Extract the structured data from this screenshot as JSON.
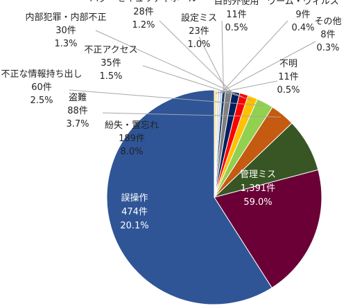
{
  "chart_data": {
    "type": "pie",
    "title": "",
    "slices": [
      {
        "name": "管理ミス",
        "count": "1,391件",
        "pct_label": "59.0%",
        "value": 1391,
        "color": "#2f5597",
        "text_color": "#ffffff"
      },
      {
        "name": "誤操作",
        "count": "474件",
        "pct_label": "20.1%",
        "value": 474,
        "color": "#6a0036",
        "text_color": "#ffffff"
      },
      {
        "name": "紛失・置忘れ",
        "count": "189件",
        "pct_label": "8.0%",
        "value": 189,
        "color": "#375623",
        "text_color": "#222222"
      },
      {
        "name": "盗難",
        "count": "88件",
        "pct_label": "3.7%",
        "value": 88,
        "color": "#c55a11",
        "text_color": "#222222"
      },
      {
        "name": "不正な情報持ち出し",
        "count": "60件",
        "pct_label": "2.5%",
        "value": 60,
        "color": "#92d050",
        "text_color": "#222222"
      },
      {
        "name": "不正アクセス",
        "count": "35件",
        "pct_label": "1.5%",
        "value": 35,
        "color": "#ffc000",
        "text_color": "#222222"
      },
      {
        "name": "内部犯罪・内部不正",
        "count": "30件",
        "pct_label": "1.3%",
        "value": 30,
        "color": "#ff0000",
        "text_color": "#222222"
      },
      {
        "name": "バグ・セキュリティホール",
        "count": "28件",
        "pct_label": "1.2%",
        "value": 28,
        "color": "#002060",
        "text_color": "#222222"
      },
      {
        "name": "設定ミス",
        "count": "23件",
        "pct_label": "1.0%",
        "value": 23,
        "color": "#7f7f7f",
        "text_color": "#222222"
      },
      {
        "name": "目的外使用",
        "count": "11件",
        "pct_label": "0.5%",
        "value": 11,
        "color": "#1f3864",
        "text_color": "#222222"
      },
      {
        "name": "ワーム・ウィルス",
        "count": "9件",
        "pct_label": "0.4%",
        "value": 9,
        "color": "#bdd7ee",
        "text_color": "#222222"
      },
      {
        "name": "その他",
        "count": "8件",
        "pct_label": "0.3%",
        "value": 8,
        "color": "#d9d9d9",
        "text_color": "#222222"
      },
      {
        "name": "不明",
        "count": "11件",
        "pct_label": "0.5%",
        "value": 11,
        "color": "#ffe699",
        "text_color": "#222222"
      }
    ]
  }
}
